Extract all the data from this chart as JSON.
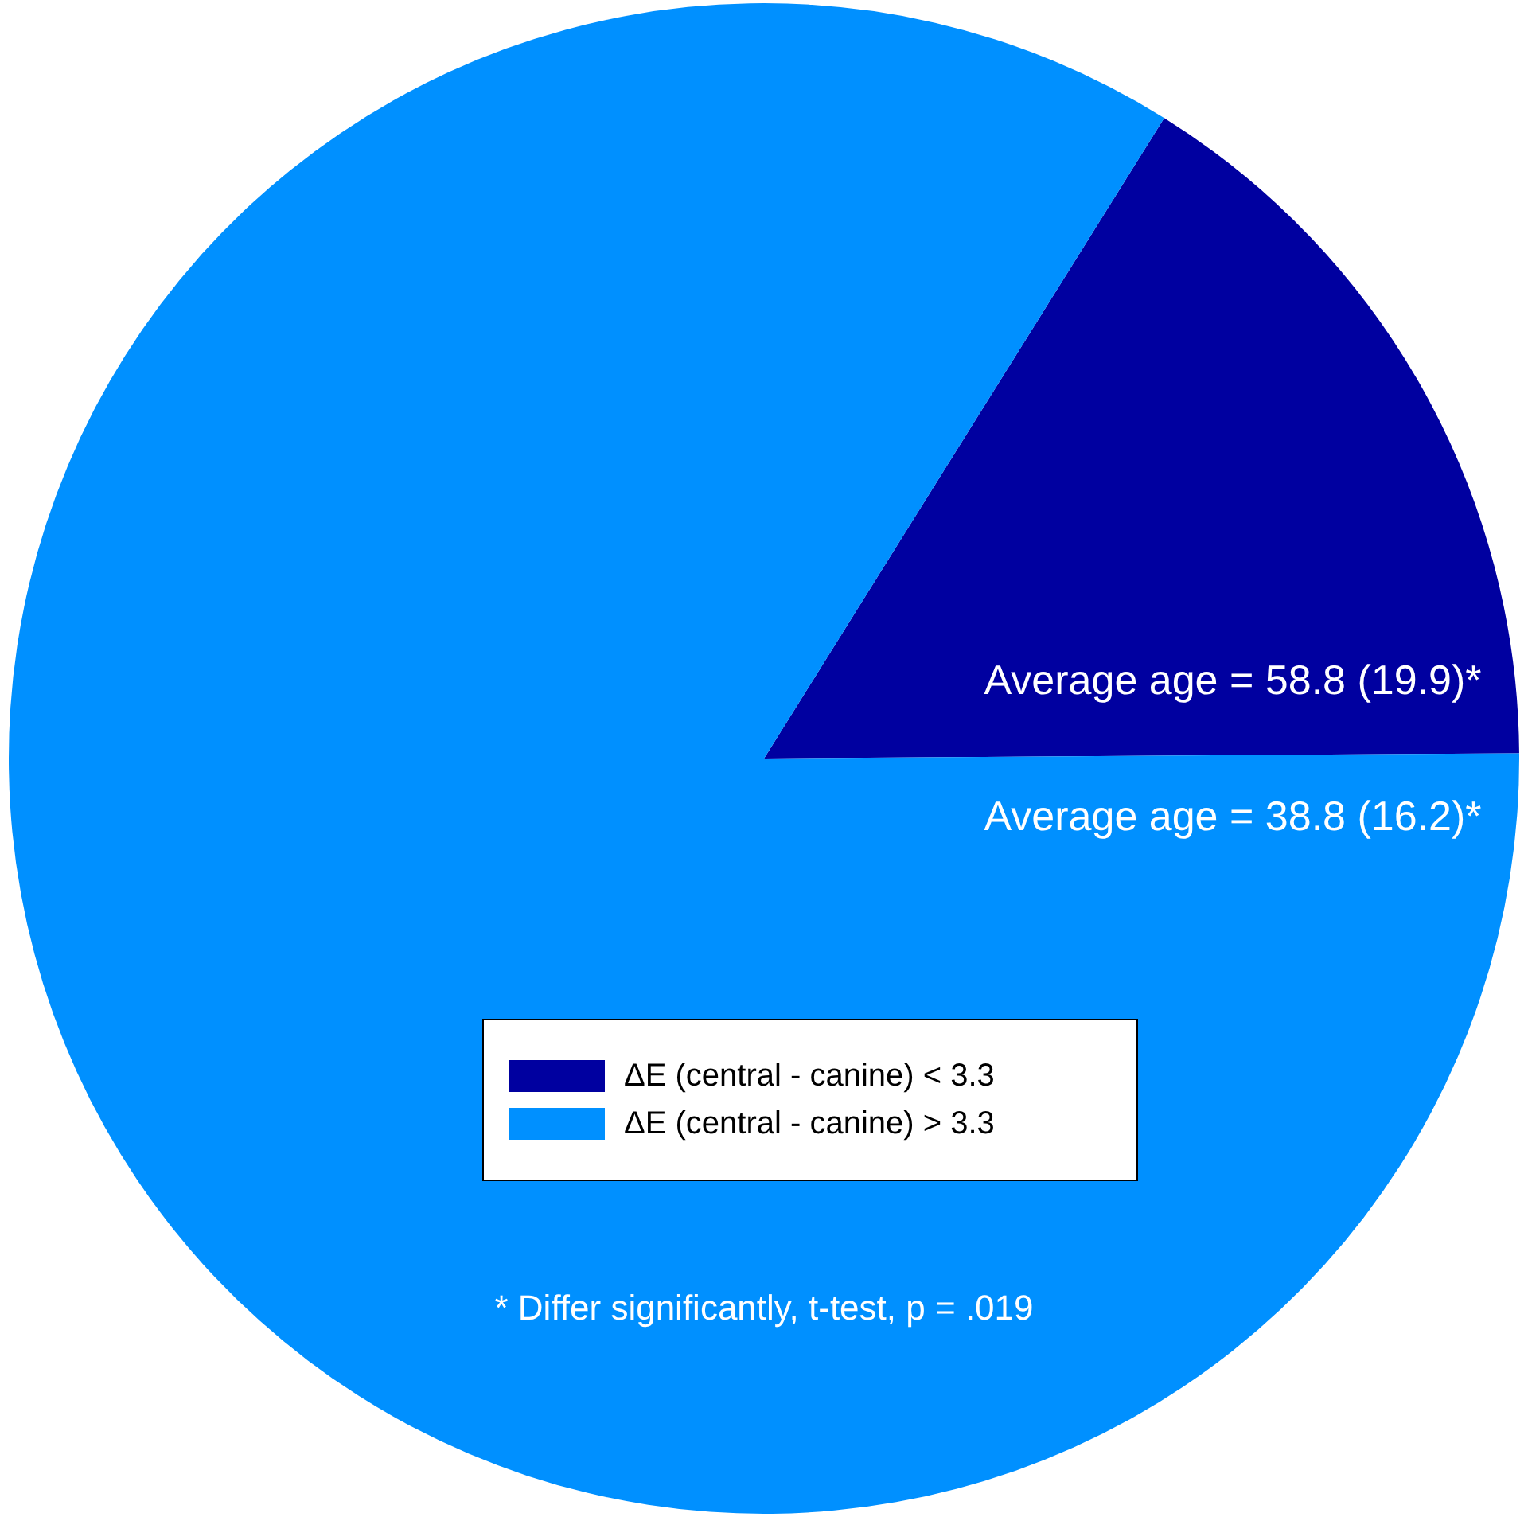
{
  "chart_data": {
    "type": "pie",
    "categories": [
      "ΔE (central - canine) < 3.3",
      "ΔE (central - canine) > 3.3"
    ],
    "values": [
      16,
      84
    ],
    "colors": [
      "#0000a0",
      "#0090ff"
    ],
    "legend": "bottom",
    "annotations": [
      "Average age = 58.8 (19.9)*",
      "Average age = 38.8 (16.2)*",
      "* Differ significantly, t-test, p = .019"
    ]
  }
}
